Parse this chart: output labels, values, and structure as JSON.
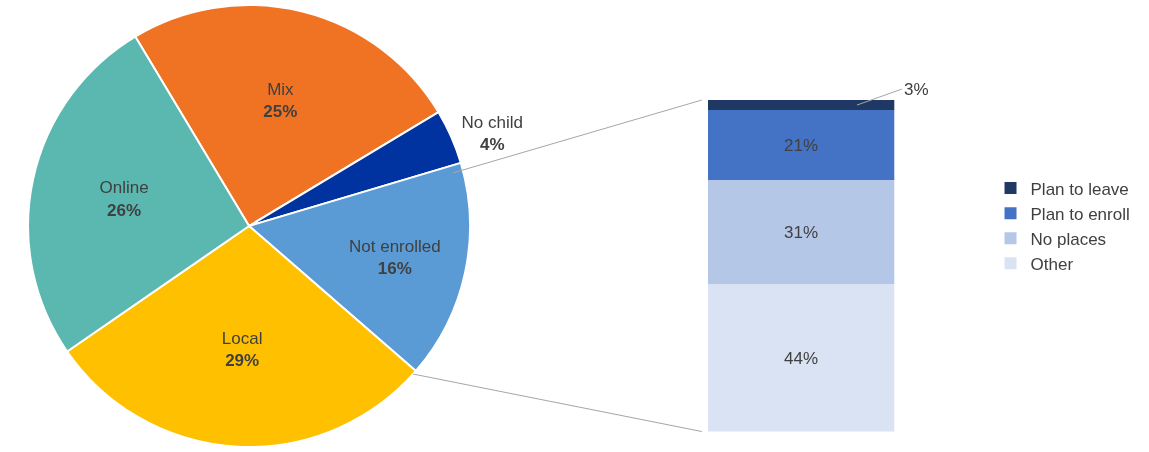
{
  "chart_data": [
    {
      "type": "pie",
      "categories": [
        "Mix",
        "No child",
        "Not enrolled",
        "Local",
        "Online"
      ],
      "values": [
        25,
        4,
        16,
        29,
        26
      ],
      "value_labels": [
        "25%",
        "4%",
        "16%",
        "29%",
        "26%"
      ],
      "colors": [
        "#f07323",
        "#0033a0",
        "#5b9bd5",
        "#ffc000",
        "#5ab8b0"
      ],
      "legend": false
    },
    {
      "type": "bar",
      "stacked": true,
      "categories": [
        null
      ],
      "legend": "right",
      "series": [
        {
          "name": "Other",
          "color": "#dae3f3",
          "values": [
            44
          ],
          "value_labels": [
            "44%"
          ]
        },
        {
          "name": "No places",
          "color": "#b4c7e7",
          "values": [
            31
          ],
          "value_labels": [
            "31%"
          ]
        },
        {
          "name": "Plan to enroll",
          "color": "#4472c4",
          "values": [
            21
          ],
          "value_labels": [
            "21%"
          ]
        },
        {
          "name": "Plan to leave",
          "color": "#1f3864",
          "values": [
            3
          ],
          "value_labels": [
            "3%"
          ]
        }
      ]
    }
  ]
}
